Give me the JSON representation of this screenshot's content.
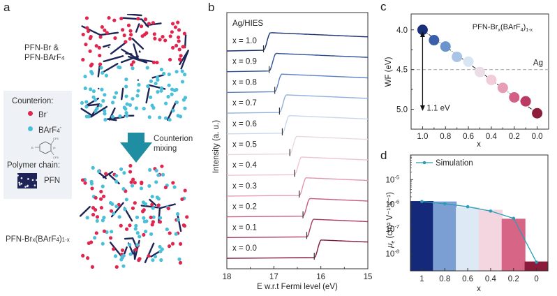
{
  "panel_a": {
    "label": "a",
    "top_title_line1": "PFN-Br &",
    "top_title_line2": "PFN-BArF",
    "top_title_sub": "4",
    "bottom_title_main": "PFN-Br",
    "bottom_title_x": "x",
    "bottom_title_mid": "(BArF",
    "bottom_title_4": "4",
    "bottom_title_end": ")",
    "bottom_title_sub": "1-x",
    "arrow_label_line1": "Counterion",
    "arrow_label_line2": "mixing",
    "legend": {
      "counterion_heading": "Counterion:",
      "br_label": "Br",
      "br_sup": "-",
      "barf_label": "BArF",
      "barf_sub": "4",
      "barf_sup": "-",
      "polymer_heading": "Polymer chain:",
      "pfn_label": "PFN"
    },
    "colors": {
      "br": "#e0264f",
      "barf": "#49bfd9",
      "polymer": "#1e2456",
      "arrow": "#1f8ea3",
      "legend_bg": "#eef2f6"
    }
  },
  "chart_data": [
    {
      "panel": "b",
      "type": "line",
      "title": "Ag/HIES",
      "xlabel": "E w.r.t Fermi level (eV)",
      "ylabel": "Intensity (a. u.)",
      "xlim": [
        18,
        15
      ],
      "xticks": [
        "18",
        "17",
        "16",
        "15"
      ],
      "grid": false,
      "series": [
        {
          "name": "x = 1.0",
          "onset": 17.22,
          "color": "#1b2f6e"
        },
        {
          "name": "x = 0.9",
          "onset": 17.1,
          "color": "#2e4f96"
        },
        {
          "name": "x = 0.8",
          "onset": 16.98,
          "color": "#5b82c2"
        },
        {
          "name": "x = 0.7",
          "onset": 16.88,
          "color": "#8fb0dc"
        },
        {
          "name": "x = 0.6",
          "onset": 16.82,
          "color": "#c8d8ec"
        },
        {
          "name": "x = 0.5",
          "onset": 16.66,
          "color": "#ead9e3"
        },
        {
          "name": "x = 0.4",
          "onset": 16.56,
          "color": "#efc4d2"
        },
        {
          "name": "x = 0.3",
          "onset": 16.46,
          "color": "#e096b0"
        },
        {
          "name": "x = 0.2",
          "onset": 16.38,
          "color": "#c65a80"
        },
        {
          "name": "x = 0.1",
          "onset": 16.3,
          "color": "#a83a5c"
        },
        {
          "name": "x = 0.0",
          "onset": 16.14,
          "color": "#7d1a36"
        }
      ]
    },
    {
      "panel": "c",
      "type": "scatter",
      "annotation_title_main": "PFN-Br",
      "annotation_title_x": "x",
      "annotation_title_mid": "(BArF",
      "annotation_title_4": "4",
      "annotation_title_end": ")",
      "annotation_title_sub": "1-x",
      "xlabel": "x",
      "ylabel": "WF (eV)",
      "xlim": [
        1.1,
        -0.1
      ],
      "ylim": [
        3.8,
        5.25
      ],
      "y_inverted": true,
      "xticks": [
        "1.0",
        "0.8",
        "0.6",
        "0.4",
        "0.2",
        "0.0"
      ],
      "yticks": [
        "4.0",
        "4.5",
        "5.0"
      ],
      "reference_line": {
        "label": "Ag",
        "value": 4.5,
        "color": "#b5b5b5"
      },
      "delta_annotation": "1.1 eV",
      "x": [
        1.0,
        0.9,
        0.8,
        0.7,
        0.6,
        0.5,
        0.4,
        0.3,
        0.2,
        0.1,
        0.0
      ],
      "y": [
        4.0,
        4.13,
        4.21,
        4.34,
        4.4,
        4.53,
        4.63,
        4.73,
        4.85,
        4.9,
        5.05
      ],
      "colors": [
        "#1a2f7a",
        "#3a5ea8",
        "#6b94cc",
        "#a7c3e6",
        "#d8e6f3",
        "#eadde6",
        "#f1ccd9",
        "#e59db8",
        "#d35e86",
        "#b93a62",
        "#8e1d3c"
      ]
    },
    {
      "panel": "d",
      "type": "bar",
      "xlabel": "x",
      "ylabel_mu": "μ",
      "ylabel_sub": "e",
      "ylabel_units": " (cm² V⁻¹ s⁻¹)",
      "yscale": "log",
      "ylim": [
        2e-09,
        0.0001
      ],
      "yticks": [
        {
          "base": "10",
          "exp": "-5",
          "value": 1e-05
        },
        {
          "base": "10",
          "exp": "-6",
          "value": 1e-06
        },
        {
          "base": "10",
          "exp": "-7",
          "value": 1e-07
        },
        {
          "base": "10",
          "exp": "-8",
          "value": 1e-08
        }
      ],
      "categories": [
        "1",
        "0.8",
        "0.6",
        "0.4",
        "0.2",
        "0"
      ],
      "values": [
        1.35e-06,
        1.3e-06,
        7.5e-07,
        6e-07,
        2.6e-07,
        4.8e-09
      ],
      "bar_colors": [
        "#15297a",
        "#7b9fd3",
        "#dde9f5",
        "#f3d6e0",
        "#d76585",
        "#8a1b3a"
      ],
      "series": [
        {
          "name": "Simulation",
          "values": [
            1.3e-06,
            1.05e-06,
            8e-07,
            5.3e-07,
            2.7e-07,
            4.5e-09
          ],
          "color": "#2a9db5"
        }
      ],
      "legend_position": "top-left"
    }
  ]
}
